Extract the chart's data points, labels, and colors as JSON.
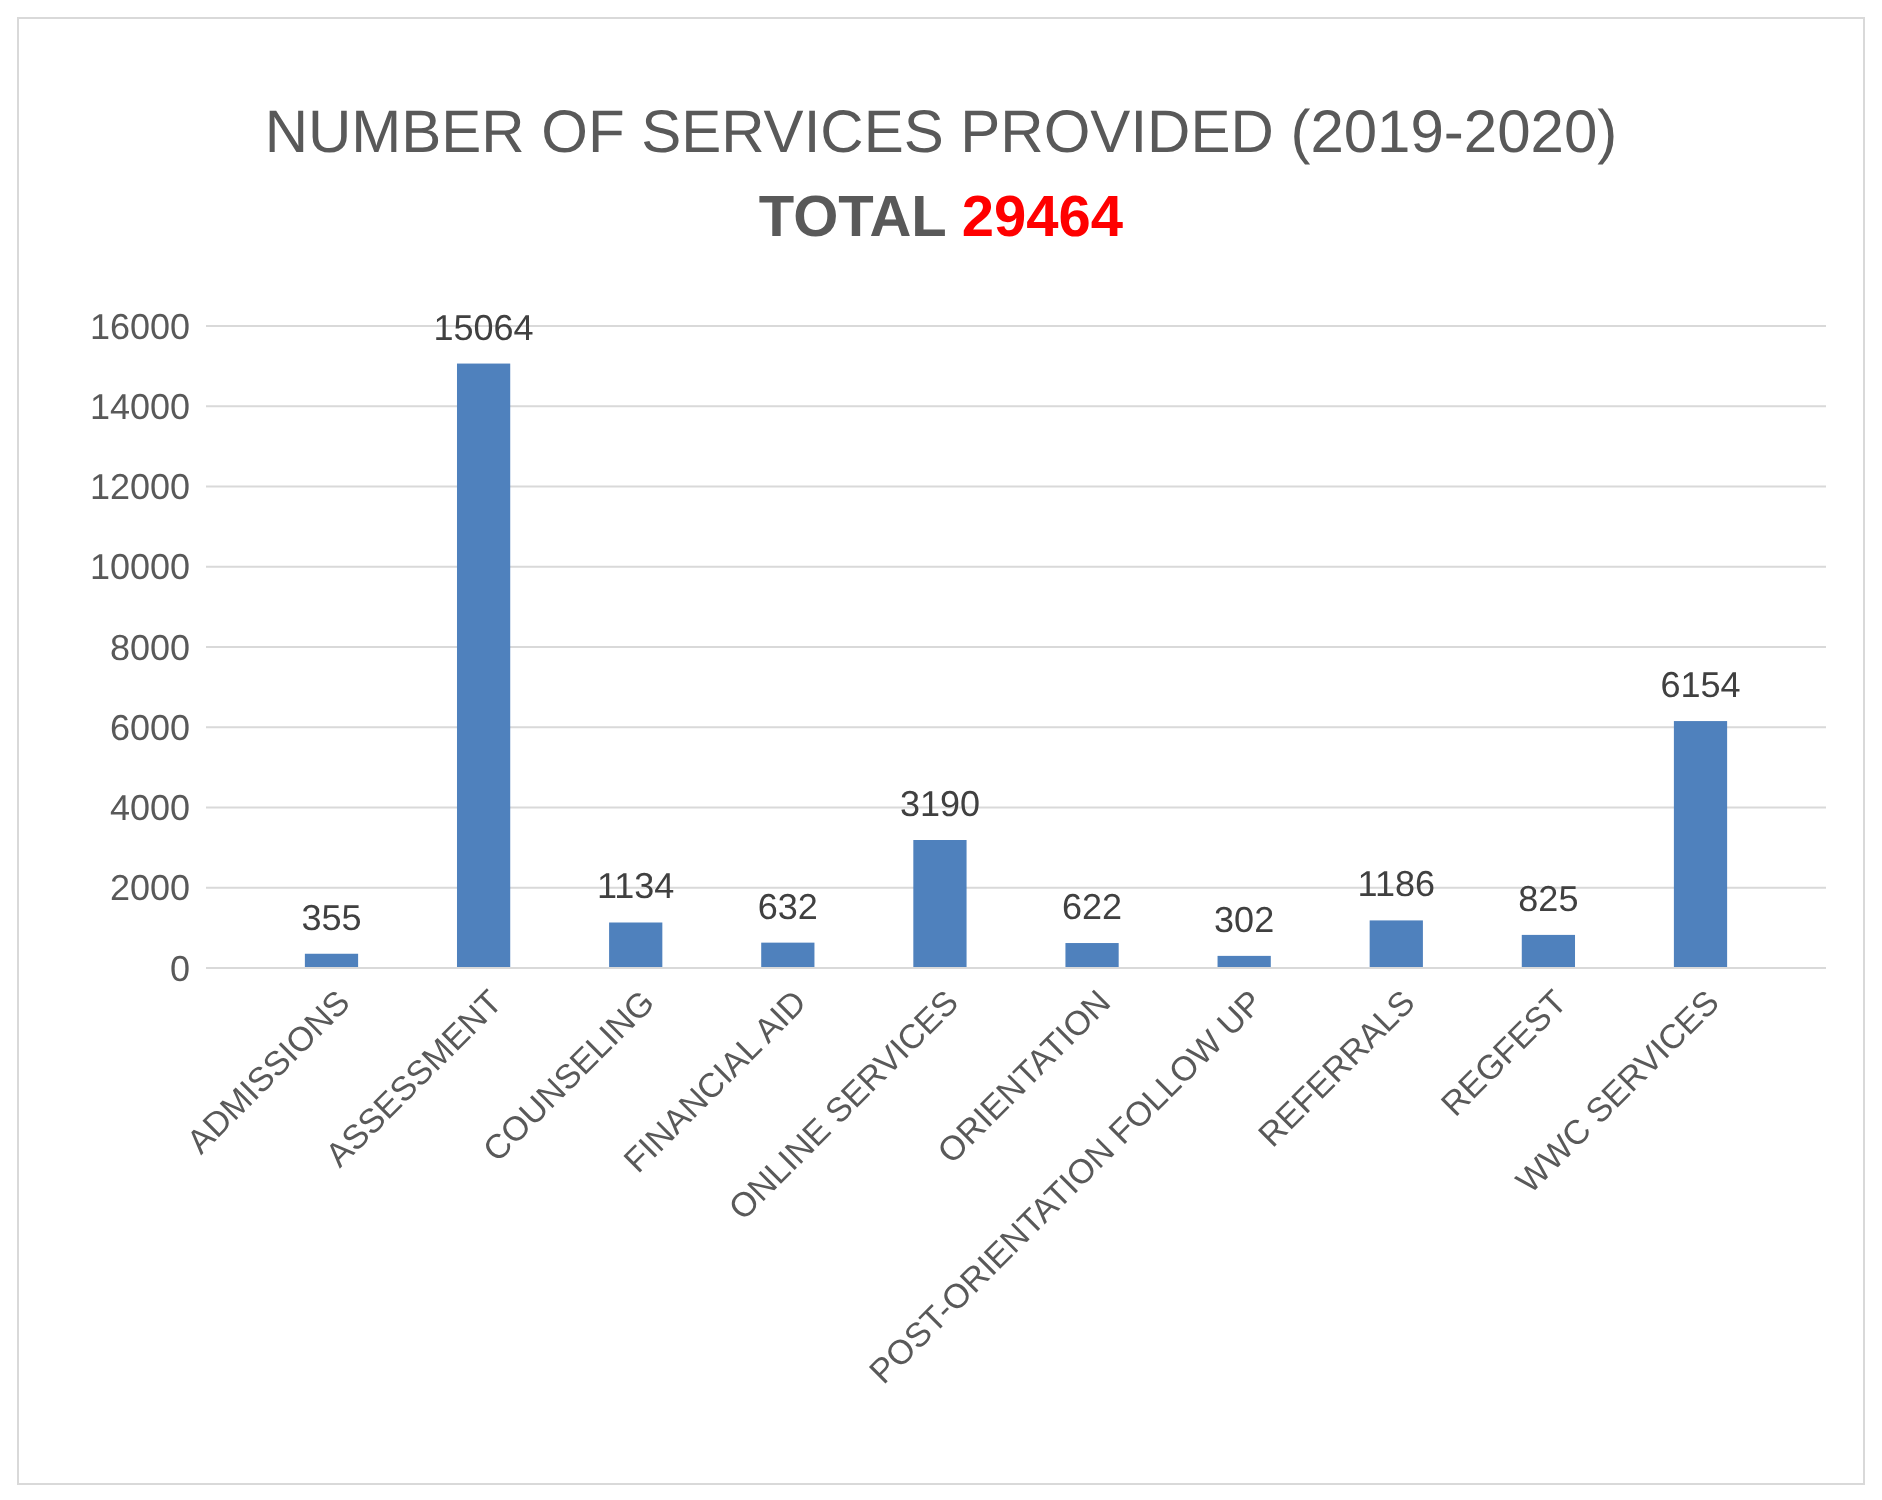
{
  "chart_data": {
    "type": "bar",
    "title": "NUMBER OF SERVICES PROVIDED (2019-2020)",
    "subtitle": "TOTAL 29464",
    "categories": [
      "ADMISSIONS",
      "ASSESSMENT",
      "COUNSELING",
      "FINANCIAL AID",
      "ONLINE SERVICES",
      "ORIENTATION",
      "POST-ORIENTATION FOLLOW UP",
      "REFERRALS",
      "REGFEST",
      "WWC SERVICES"
    ],
    "values": [
      355,
      15064,
      1134,
      632,
      3190,
      622,
      302,
      1186,
      825,
      6154
    ],
    "color": "#4f81bd",
    "ylim": [
      0,
      16000
    ],
    "yticks": [
      0,
      2000,
      4000,
      6000,
      8000,
      10000,
      12000,
      14000,
      16000
    ],
    "grid": "y",
    "data_labels": true
  }
}
